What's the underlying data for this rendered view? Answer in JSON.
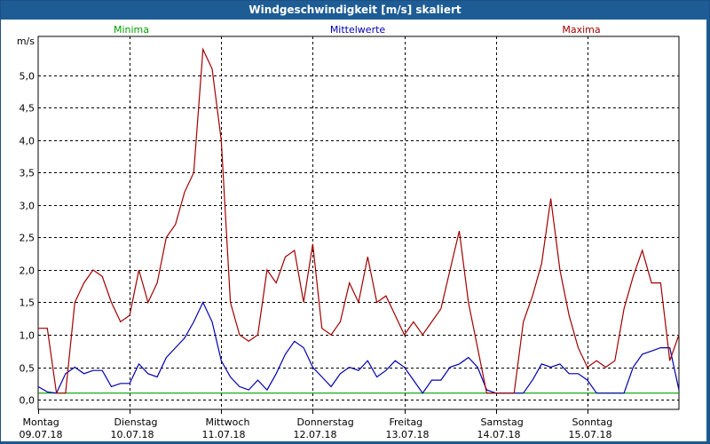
{
  "window": {
    "title": "Windgeschwindigkeit [m/s] skaliert"
  },
  "colors": {
    "titlebar": "#1d5c94",
    "minima": "#00a000",
    "mittelwerte": "#0000b0",
    "maxima": "#a00000",
    "grid": "#000000"
  },
  "chart_data": {
    "type": "line",
    "title": "Windgeschwindigkeit [m/s] skaliert",
    "ylabel": "m/s",
    "xlabel": "",
    "ylim": [
      -0.15,
      5.6
    ],
    "xlim": [
      0,
      7.0
    ],
    "grid": true,
    "legend_placement": "top",
    "y_ticks": [
      0.0,
      0.5,
      1.0,
      1.5,
      2.0,
      2.5,
      3.0,
      3.5,
      4.0,
      4.5,
      5.0
    ],
    "y_tick_labels": [
      "0,0",
      "0,5",
      "1,0",
      "1,5",
      "2,0",
      "2,5",
      "3,0",
      "3,5",
      "4,0",
      "4,5",
      "5,0"
    ],
    "x_tick_labels": [
      {
        "day": "Montag",
        "date": "09.07.18"
      },
      {
        "day": "Dienstag",
        "date": "10.07.18"
      },
      {
        "day": "Mittwoch",
        "date": "11.07.18"
      },
      {
        "day": "Donnerstag",
        "date": "12.07.18"
      },
      {
        "day": "Freitag",
        "date": "13.07.18"
      },
      {
        "day": "Samstag",
        "date": "14.07.18"
      },
      {
        "day": "Sonntag",
        "date": "15.07.18"
      }
    ],
    "series": [
      {
        "name": "Minima",
        "color": "#00a000",
        "x": [
          0,
          7.0
        ],
        "values": [
          0.1,
          0.1
        ]
      },
      {
        "name": "Mittelwerte",
        "color": "#0000b0",
        "x": [
          0.0,
          0.1,
          0.2,
          0.3,
          0.4,
          0.5,
          0.6,
          0.7,
          0.8,
          0.9,
          1.0,
          1.1,
          1.2,
          1.3,
          1.4,
          1.5,
          1.6,
          1.7,
          1.8,
          1.9,
          2.0,
          2.1,
          2.2,
          2.3,
          2.4,
          2.5,
          2.6,
          2.7,
          2.8,
          2.9,
          3.0,
          3.1,
          3.2,
          3.3,
          3.4,
          3.5,
          3.6,
          3.7,
          3.8,
          3.9,
          4.0,
          4.1,
          4.2,
          4.3,
          4.4,
          4.5,
          4.6,
          4.7,
          4.8,
          4.9,
          5.0,
          5.1,
          5.2,
          5.3,
          5.4,
          5.5,
          5.6,
          5.7,
          5.8,
          5.9,
          6.0,
          6.1,
          6.2,
          6.3,
          6.4,
          6.5,
          6.6,
          6.7,
          6.8,
          6.9,
          7.0
        ],
        "values": [
          0.2,
          0.12,
          0.1,
          0.4,
          0.5,
          0.4,
          0.45,
          0.45,
          0.2,
          0.25,
          0.25,
          0.55,
          0.4,
          0.35,
          0.65,
          0.8,
          0.95,
          1.2,
          1.5,
          1.2,
          0.6,
          0.35,
          0.2,
          0.15,
          0.3,
          0.15,
          0.4,
          0.7,
          0.9,
          0.8,
          0.5,
          0.35,
          0.2,
          0.4,
          0.5,
          0.45,
          0.6,
          0.35,
          0.45,
          0.6,
          0.5,
          0.3,
          0.1,
          0.3,
          0.3,
          0.5,
          0.55,
          0.65,
          0.5,
          0.15,
          0.1,
          0.1,
          0.1,
          0.1,
          0.3,
          0.55,
          0.5,
          0.55,
          0.4,
          0.4,
          0.3,
          0.1,
          0.1,
          0.1,
          0.1,
          0.5,
          0.7,
          0.75,
          0.8,
          0.8,
          0.15
        ]
      },
      {
        "name": "Maxima",
        "color": "#a00000",
        "x": [
          0.0,
          0.1,
          0.2,
          0.3,
          0.4,
          0.5,
          0.6,
          0.7,
          0.8,
          0.9,
          1.0,
          1.1,
          1.2,
          1.3,
          1.4,
          1.5,
          1.6,
          1.7,
          1.8,
          1.9,
          2.0,
          2.1,
          2.2,
          2.3,
          2.4,
          2.5,
          2.6,
          2.7,
          2.8,
          2.9,
          3.0,
          3.1,
          3.2,
          3.3,
          3.4,
          3.5,
          3.6,
          3.7,
          3.8,
          3.9,
          4.0,
          4.1,
          4.2,
          4.3,
          4.4,
          4.5,
          4.6,
          4.7,
          4.8,
          4.9,
          5.0,
          5.1,
          5.2,
          5.3,
          5.4,
          5.5,
          5.6,
          5.7,
          5.8,
          5.9,
          6.0,
          6.1,
          6.2,
          6.3,
          6.4,
          6.5,
          6.6,
          6.7,
          6.8,
          6.9,
          7.0
        ],
        "values": [
          1.1,
          1.1,
          0.1,
          0.1,
          1.5,
          1.8,
          2.0,
          1.9,
          1.5,
          1.2,
          1.3,
          2.0,
          1.5,
          1.8,
          2.5,
          2.7,
          3.2,
          3.5,
          5.4,
          5.1,
          4.0,
          1.5,
          1.0,
          0.9,
          1.0,
          2.0,
          1.8,
          2.2,
          2.3,
          1.5,
          2.4,
          1.1,
          1.0,
          1.2,
          1.8,
          1.5,
          2.2,
          1.5,
          1.6,
          1.3,
          1.0,
          1.2,
          1.0,
          1.2,
          1.4,
          2.0,
          2.6,
          1.5,
          0.8,
          0.1,
          0.1,
          0.1,
          0.1,
          1.2,
          1.6,
          2.1,
          3.1,
          2.0,
          1.3,
          0.8,
          0.5,
          0.6,
          0.5,
          0.6,
          1.4,
          1.9,
          2.3,
          1.8,
          1.8,
          0.6,
          1.0
        ]
      }
    ]
  }
}
